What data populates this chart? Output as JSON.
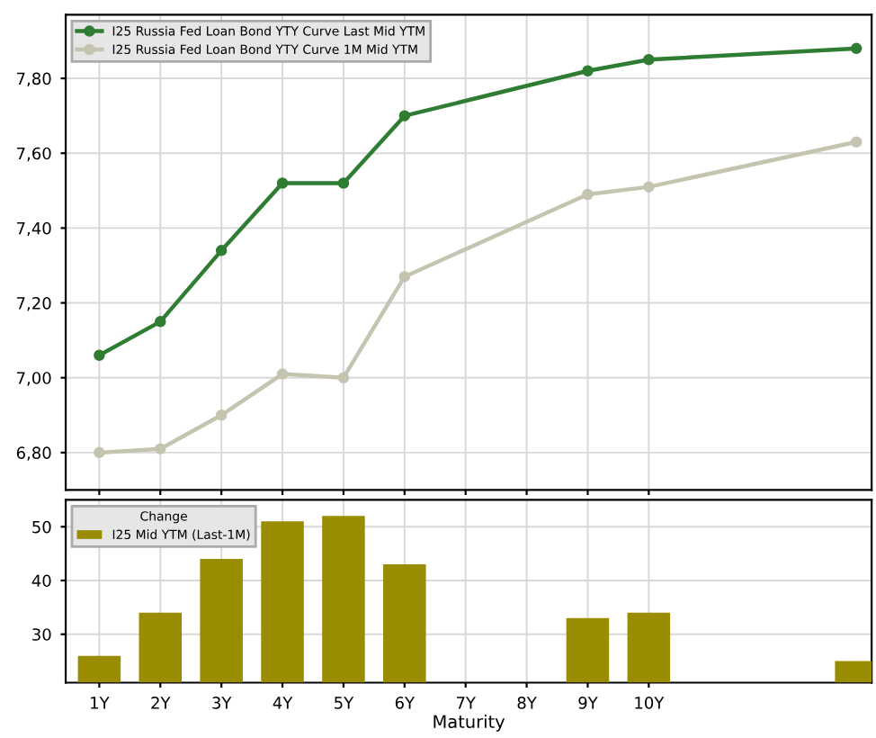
{
  "chart_data": [
    {
      "type": "line",
      "x": [
        1,
        2,
        3,
        4,
        5,
        6,
        9,
        10,
        13.4
      ],
      "series": [
        {
          "name": "I25 Russia Fed Loan Bond YTY Curve Last Mid YTM",
          "color": "#2f7d32",
          "values": [
            7.06,
            7.15,
            7.34,
            7.52,
            7.52,
            7.7,
            7.82,
            7.85,
            7.88
          ]
        },
        {
          "name": "I25 Russia Fed Loan Bond YTY Curve 1M Mid YTM",
          "color": "#c4c4b0",
          "values": [
            6.8,
            6.81,
            6.9,
            7.01,
            7.0,
            7.27,
            7.49,
            7.51,
            7.63
          ]
        }
      ],
      "xlim": [
        0.45,
        13.65
      ],
      "ylim": [
        6.7,
        7.97
      ],
      "xticks": [
        {
          "value": 1,
          "label": null
        },
        {
          "value": 2,
          "label": null
        },
        {
          "value": 3,
          "label": null
        },
        {
          "value": 4,
          "label": null
        },
        {
          "value": 5,
          "label": null
        },
        {
          "value": 6,
          "label": null
        },
        {
          "value": 7,
          "label": null
        },
        {
          "value": 8,
          "label": null
        },
        {
          "value": 9,
          "label": null
        },
        {
          "value": 10,
          "label": null
        }
      ],
      "yticks": [
        {
          "value": 6.8,
          "label": "6,80"
        },
        {
          "value": 7.0,
          "label": "7,00"
        },
        {
          "value": 7.2,
          "label": "7,20"
        },
        {
          "value": 7.4,
          "label": "7,40"
        },
        {
          "value": 7.6,
          "label": "7,60"
        },
        {
          "value": 7.8,
          "label": "7,80"
        }
      ],
      "tick_labels": "y",
      "grid": true,
      "legend": "top left",
      "marker": "circle",
      "line_style": "solid"
    },
    {
      "type": "bar",
      "x": [
        1,
        2,
        3,
        4,
        5,
        6,
        7,
        8,
        9,
        10,
        13.4
      ],
      "series": [
        {
          "name": "I25 Mid YTM (Last-1M)",
          "color": "#9a8c00",
          "values": [
            26,
            34,
            44,
            51,
            52,
            43,
            null,
            null,
            33,
            34,
            25
          ]
        }
      ],
      "legend_title": "Change",
      "xlabel": "Maturity",
      "xlim": [
        0.45,
        13.65
      ],
      "ylim": [
        21,
        55
      ],
      "xticks": [
        {
          "value": 1,
          "label": "1Y"
        },
        {
          "value": 2,
          "label": "2Y"
        },
        {
          "value": 3,
          "label": "3Y"
        },
        {
          "value": 4,
          "label": "4Y"
        },
        {
          "value": 5,
          "label": "5Y"
        },
        {
          "value": 6,
          "label": "6Y"
        },
        {
          "value": 7,
          "label": "7Y"
        },
        {
          "value": 8,
          "label": "8Y"
        },
        {
          "value": 9,
          "label": "9Y"
        },
        {
          "value": 10,
          "label": "10Y"
        }
      ],
      "yticks": [
        30,
        40,
        50
      ],
      "grid": true,
      "legend": "top left"
    }
  ]
}
